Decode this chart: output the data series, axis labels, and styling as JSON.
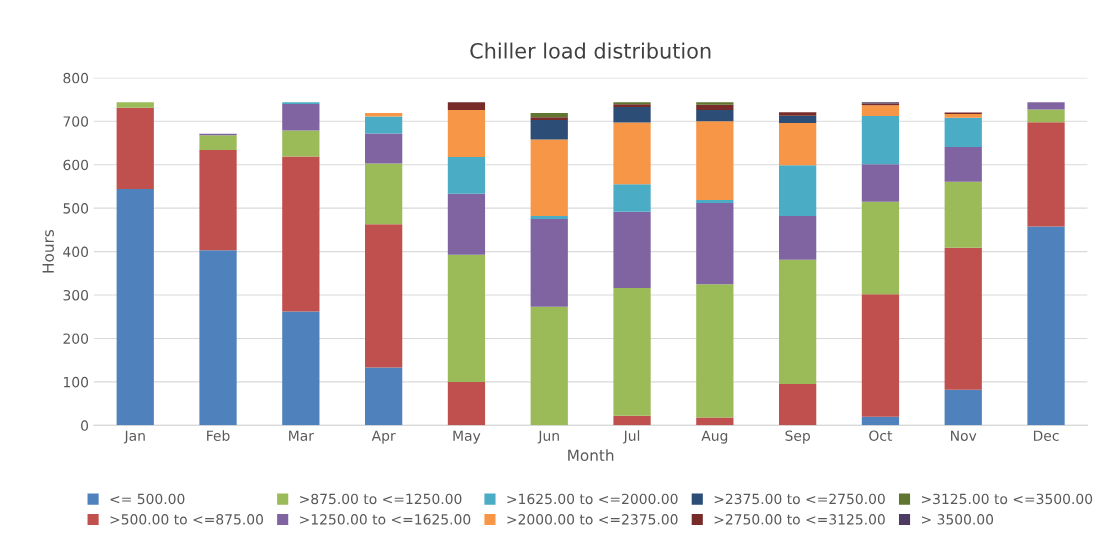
{
  "chart_data": {
    "type": "bar",
    "stacked": true,
    "title": "Chiller load distribution",
    "xlabel": "Month",
    "ylabel": "Hours",
    "categories": [
      "Jan",
      "Feb",
      "Mar",
      "Apr",
      "May",
      "Jun",
      "Jul",
      "Aug",
      "Sep",
      "Oct",
      "Nov",
      "Dec"
    ],
    "ylim": [
      0,
      800
    ],
    "yticks": [
      0,
      100,
      200,
      300,
      400,
      500,
      600,
      700,
      800
    ],
    "grid": "y",
    "legend": "bottom",
    "series": [
      {
        "name": "<= 500.00",
        "color": "#4f81bd",
        "values": [
          544,
          403,
          262,
          133,
          0,
          0,
          0,
          0,
          0,
          20,
          82,
          458
        ]
      },
      {
        "name": ">500.00 to <=875.00",
        "color": "#c0504d",
        "values": [
          187,
          231,
          357,
          330,
          100,
          0,
          22,
          18,
          95,
          282,
          327,
          240
        ]
      },
      {
        "name": ">875.00 to <=1250.00",
        "color": "#9bbb59",
        "values": [
          13,
          34,
          60,
          140,
          293,
          273,
          294,
          307,
          286,
          213,
          152,
          29
        ]
      },
      {
        "name": ">1250.00 to <=1625.00",
        "color": "#8064a2",
        "values": [
          0,
          3,
          61,
          69,
          140,
          202,
          176,
          187,
          101,
          86,
          80,
          17
        ]
      },
      {
        "name": ">1625.00 to <=2000.00",
        "color": "#4bacc6",
        "values": [
          0,
          0,
          4,
          39,
          85,
          7,
          63,
          7,
          117,
          111,
          67,
          0
        ]
      },
      {
        "name": ">2000.00 to <=2375.00",
        "color": "#f79646",
        "values": [
          0,
          0,
          0,
          8,
          108,
          176,
          142,
          181,
          97,
          25,
          9,
          0
        ]
      },
      {
        "name": ">2375.00 to <=2750.00",
        "color": "#2c4d75",
        "values": [
          0,
          0,
          0,
          0,
          0,
          45,
          36,
          26,
          17,
          0,
          0,
          0
        ]
      },
      {
        "name": ">2750.00 to <=3125.00",
        "color": "#772c2a",
        "values": [
          0,
          0,
          0,
          0,
          18,
          6,
          6,
          12,
          8,
          4,
          3,
          0
        ]
      },
      {
        "name": ">3125.00 to <=3500.00",
        "color": "#5f7530",
        "values": [
          0,
          0,
          0,
          0,
          0,
          10,
          5,
          6,
          0,
          0,
          0,
          0
        ]
      },
      {
        "name": "> 3500.00",
        "color": "#4d3b62",
        "values": [
          0,
          0,
          0,
          0,
          0,
          0,
          0,
          0,
          0,
          3,
          0,
          0
        ]
      }
    ]
  }
}
